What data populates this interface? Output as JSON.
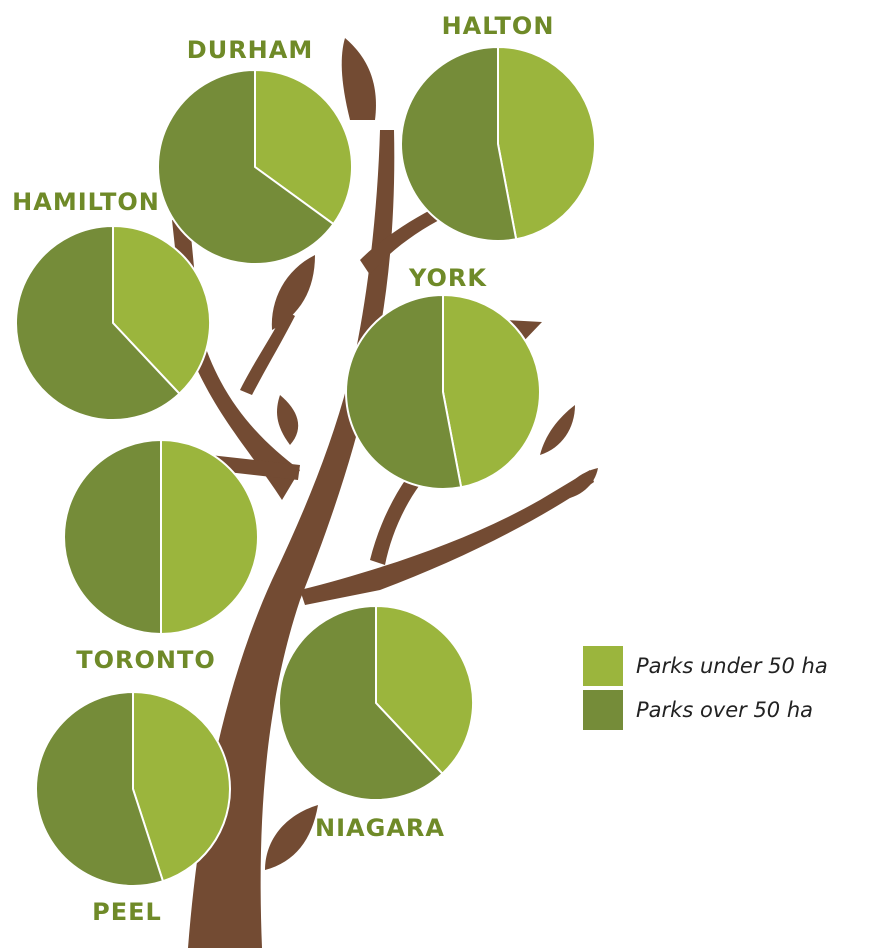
{
  "chart_data": {
    "type": "pie",
    "categories": [
      "Parks under 50 ha",
      "Parks over 50 ha"
    ],
    "colors": [
      "#9bb53d",
      "#758c39"
    ],
    "pies": [
      {
        "title": "DURHAM",
        "values": [
          35,
          65
        ]
      },
      {
        "title": "HALTON",
        "values": [
          47,
          53
        ]
      },
      {
        "title": "HAMILTON",
        "values": [
          38,
          62
        ]
      },
      {
        "title": "YORK",
        "values": [
          47,
          53
        ]
      },
      {
        "title": "TORONTO",
        "values": [
          50,
          50
        ]
      },
      {
        "title": "NIAGARA",
        "values": [
          38,
          62
        ]
      },
      {
        "title": "PEEL",
        "values": [
          45,
          55
        ]
      }
    ]
  }
}
